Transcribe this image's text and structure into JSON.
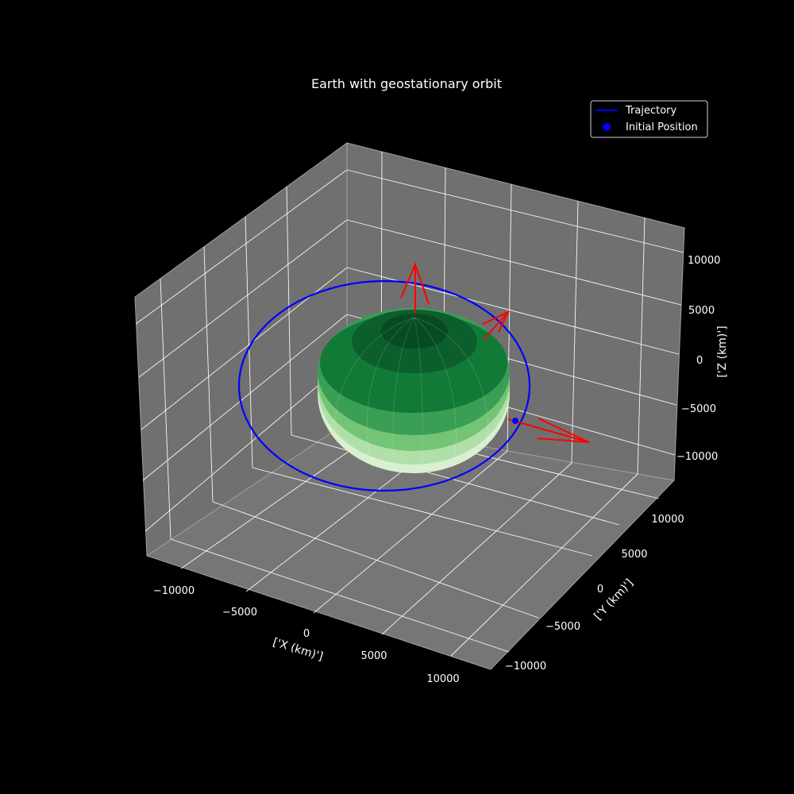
{
  "chart_data": {
    "type": "3d-surface-line",
    "title": "Earth with geostationary orbit",
    "xlabel": "['X (km)']",
    "ylabel": "['Y (km)']",
    "zlabel": "['Z (km)']",
    "xticks": [
      "−10000",
      "−5000",
      "0",
      "5000",
      "10000"
    ],
    "yticks": [
      "−10000",
      "−5000",
      "0",
      "5000",
      "10000"
    ],
    "zticks": [
      "−10000",
      "−5000",
      "0",
      "5000",
      "10000"
    ],
    "grid": true,
    "legend_position": "top-right",
    "series": [
      {
        "name": "Trajectory",
        "marker": "line",
        "color": "#0000ff"
      },
      {
        "name": "Initial Position",
        "marker": "dot",
        "color": "#0000ff"
      }
    ],
    "earth": {
      "colormap": "Greens"
    },
    "vectors": {
      "color": "#ff0000"
    }
  }
}
